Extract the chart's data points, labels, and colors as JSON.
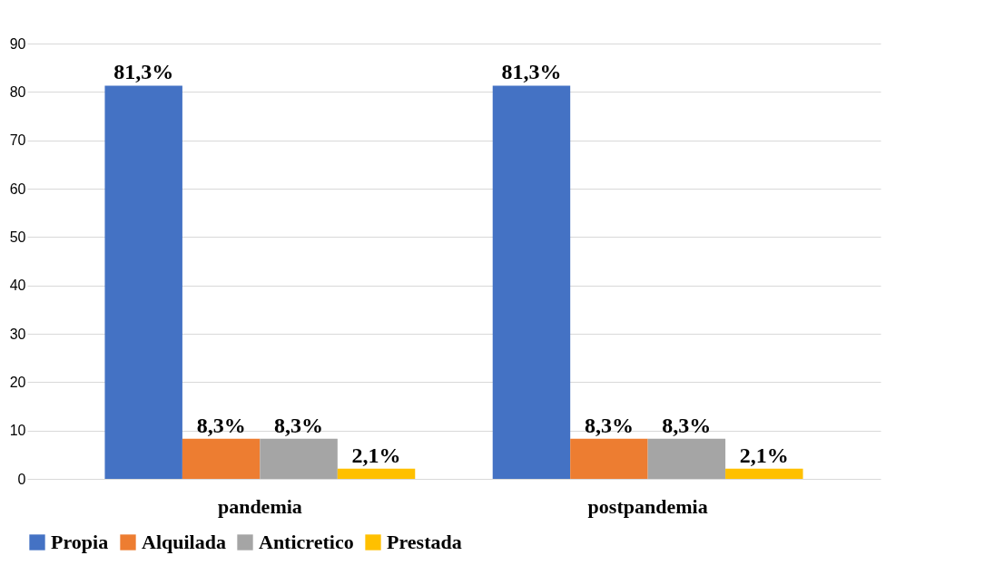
{
  "chart_data": {
    "type": "bar",
    "categories": [
      "pandemia",
      "postpandemia"
    ],
    "series": [
      {
        "name": "Propia",
        "color": "#4472c4",
        "values": [
          81.3,
          81.3
        ],
        "value_labels": [
          "81,3%",
          "81,3%"
        ]
      },
      {
        "name": "Alquilada",
        "color": "#ed7d31",
        "values": [
          8.3,
          8.3
        ],
        "value_labels": [
          "8,3%",
          "8,3%"
        ]
      },
      {
        "name": "Anticretico",
        "color": "#a5a5a5",
        "values": [
          8.3,
          8.3
        ],
        "value_labels": [
          "8,3%",
          "8,3%"
        ]
      },
      {
        "name": "Prestada",
        "color": "#ffc000",
        "values": [
          2.1,
          2.1
        ],
        "value_labels": [
          "2,1%",
          "2,1%"
        ]
      }
    ],
    "ylim": [
      0,
      90
    ],
    "yticks": [
      0,
      10,
      20,
      30,
      40,
      50,
      60,
      70,
      80,
      90
    ],
    "grid": "y",
    "legend": "bottom"
  }
}
